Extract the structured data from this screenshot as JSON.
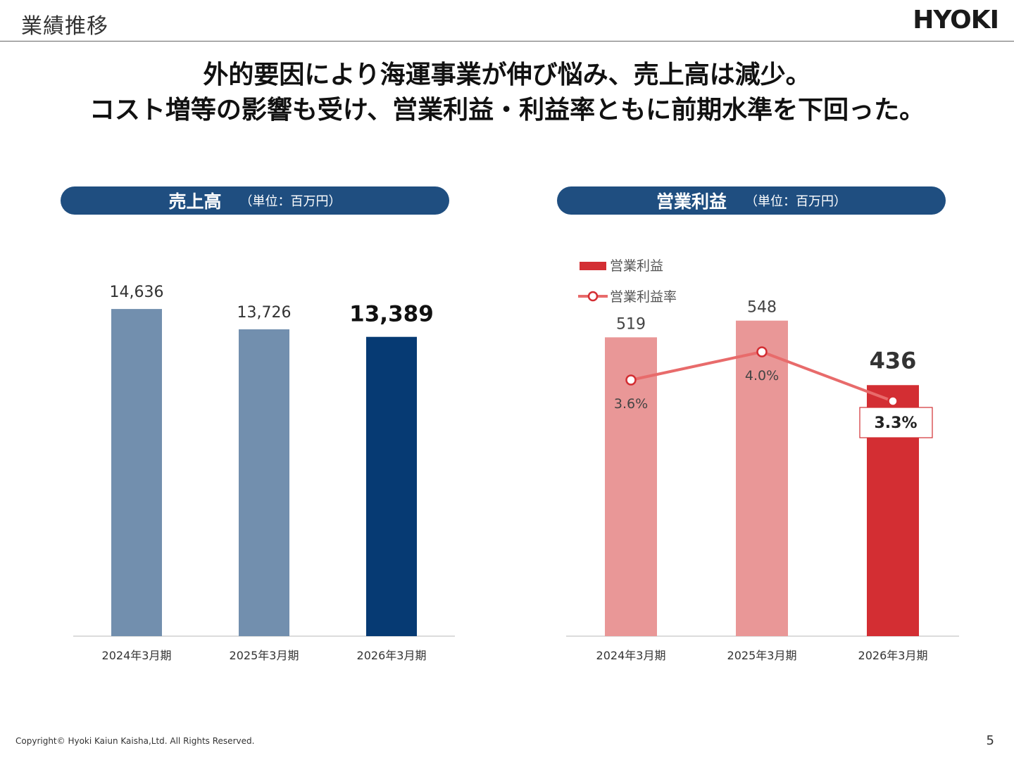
{
  "header": {
    "title": "業績推移",
    "logo": "HYOKI"
  },
  "headline": {
    "line1": "外的要因により海運事業が伸び悩み、売上高は減少。",
    "line2": "コスト増等の影響も受け、営業利益・利益率ともに前期水準を下回った。"
  },
  "panels": {
    "sales": {
      "title": "売上高",
      "unit": "（単位：百万円）"
    },
    "op": {
      "title": "営業利益",
      "unit": "（単位：百万円）"
    }
  },
  "colors": {
    "navy_label": "#1f4e80",
    "sales_past": "#728fae",
    "sales_current": "#063a73",
    "op_past": "#e99797",
    "op_current": "#d32e33",
    "rate_line": "#e86b6b"
  },
  "chart_data": [
    {
      "type": "bar",
      "title": "売上高",
      "unit": "（単位：百万円）",
      "categories": [
        "2024年3月期",
        "2025年3月期",
        "2026年3月期"
      ],
      "values": [
        14636,
        13726,
        13389
      ],
      "value_labels": [
        "14,636",
        "13,726",
        "13,389"
      ],
      "highlight_index": 2,
      "ylim": [
        0,
        17000
      ]
    },
    {
      "type": "bar",
      "title": "営業利益",
      "unit": "（単位：百万円）",
      "categories": [
        "2024年3月期",
        "2025年3月期",
        "2026年3月期"
      ],
      "series": [
        {
          "name": "営業利益",
          "type": "bar",
          "values": [
            519,
            548,
            436
          ],
          "labels": [
            "519",
            "548",
            "436"
          ]
        },
        {
          "name": "営業利益率",
          "type": "line",
          "values": [
            3.6,
            4.0,
            3.3
          ],
          "labels": [
            "3.6%",
            "4.0%",
            "3.3%"
          ]
        }
      ],
      "highlight_index": 2,
      "legend_position": "top-left",
      "ylim": [
        0,
        660
      ]
    }
  ],
  "footer": {
    "copyright": "Copyright© Hyoki Kaiun Kaisha,Ltd. All Rights Reserved.",
    "page": "5"
  }
}
